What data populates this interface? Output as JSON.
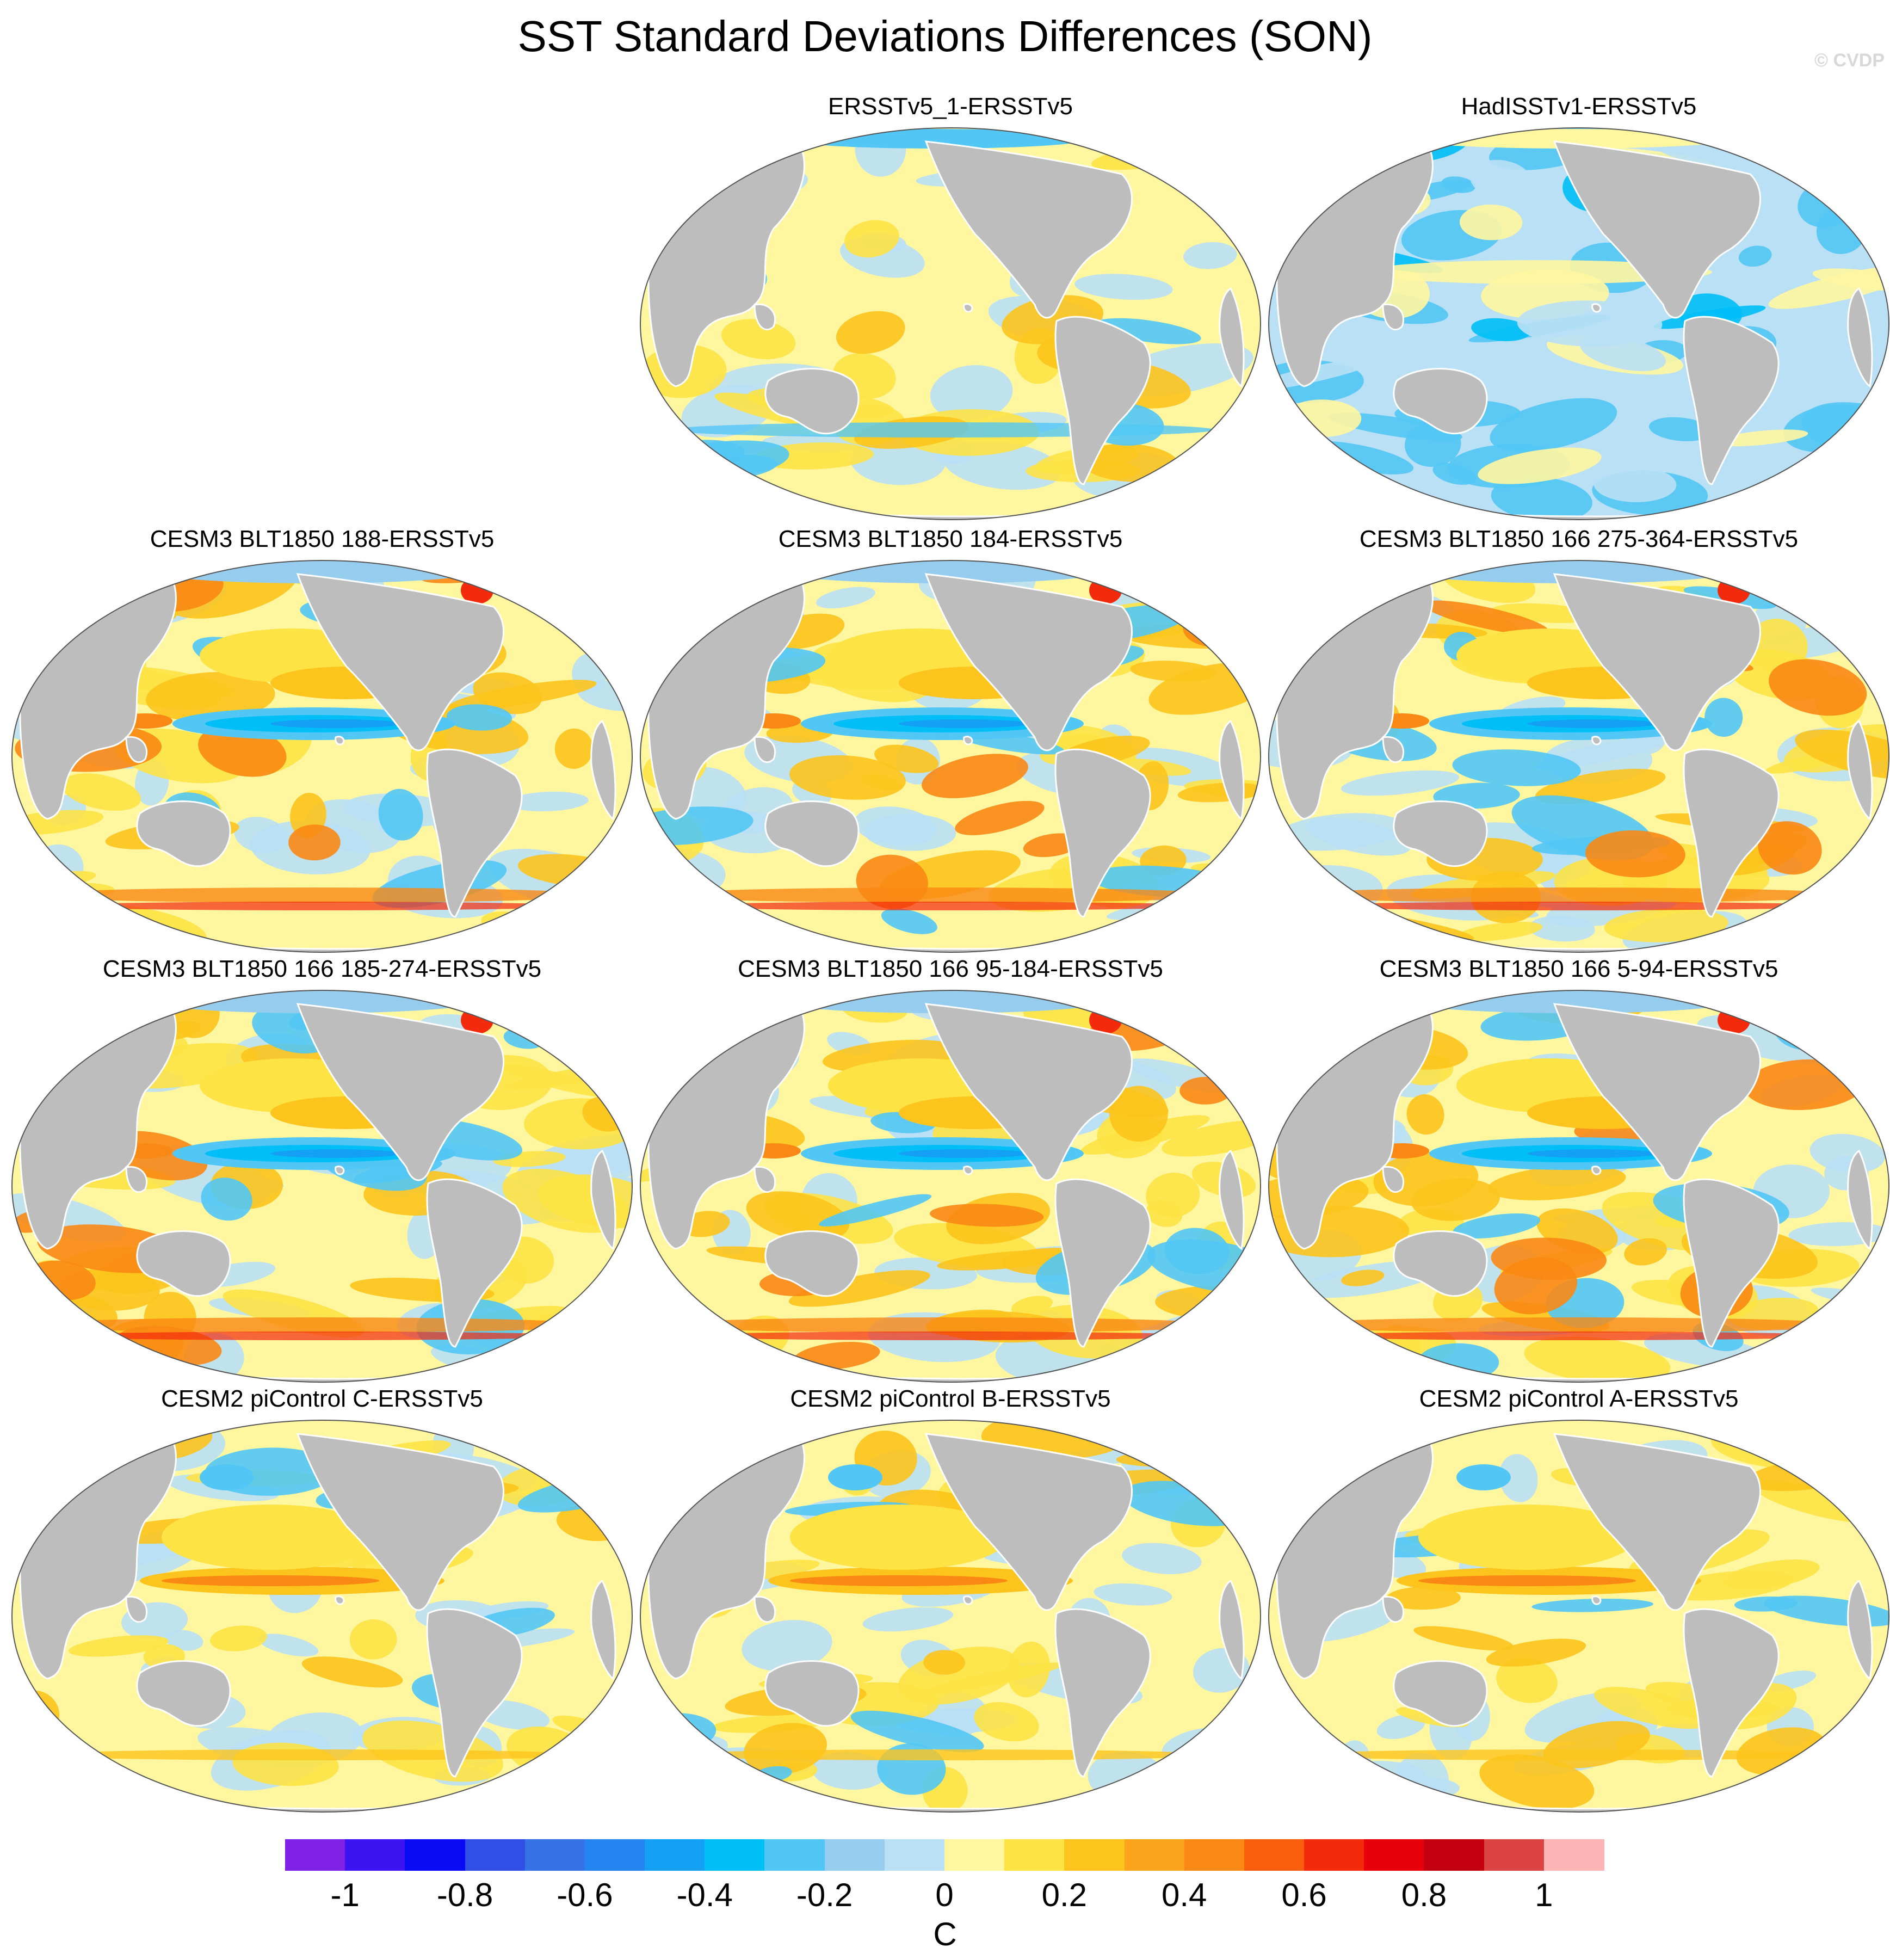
{
  "figure": {
    "title": "SST Standard Deviations Differences (SON)",
    "watermark": "© CVDP"
  },
  "panels": [
    {
      "id": "p1",
      "title": "ERSSTv5_1-ERSSTv5",
      "pattern": "obs-mixed"
    },
    {
      "id": "p2",
      "title": "HadISSTv1-ERSSTv5",
      "pattern": "obs-negative"
    },
    {
      "id": "p3",
      "title": "CESM3 BLT1850 188-ERSSTv5",
      "pattern": "cesm3"
    },
    {
      "id": "p4",
      "title": "CESM3 BLT1850 184-ERSSTv5",
      "pattern": "cesm3"
    },
    {
      "id": "p5",
      "title": "CESM3 BLT1850 166 275-364-ERSSTv5",
      "pattern": "cesm3"
    },
    {
      "id": "p6",
      "title": "CESM3 BLT1850 166 185-274-ERSSTv5",
      "pattern": "cesm3"
    },
    {
      "id": "p7",
      "title": "CESM3 BLT1850 166 95-184-ERSSTv5",
      "pattern": "cesm3"
    },
    {
      "id": "p8",
      "title": "CESM3 BLT1850 166 5-94-ERSSTv5",
      "pattern": "cesm3"
    },
    {
      "id": "p9",
      "title": "CESM2 piControl C-ERSSTv5",
      "pattern": "cesm2"
    },
    {
      "id": "p10",
      "title": "CESM2 piControl B-ERSSTv5",
      "pattern": "cesm2"
    },
    {
      "id": "p11",
      "title": "CESM2 piControl A-ERSSTv5",
      "pattern": "cesm2"
    }
  ],
  "colorbar": {
    "colors": [
      "#7f22e6",
      "#3c14f2",
      "#0a0af5",
      "#2f4fe6",
      "#3472e6",
      "#2484f2",
      "#14a0f5",
      "#00bff7",
      "#52c7f5",
      "#96cdee",
      "#b9e0f5",
      "#fff6a0",
      "#fde344",
      "#fcc41c",
      "#f9a41a",
      "#f98814",
      "#f85e0c",
      "#f42a0c",
      "#e8000a",
      "#c40010",
      "#dc4444",
      "#fcb4b4"
    ],
    "tick_labels": [
      "-1",
      "-0.8",
      "-0.6",
      "-0.4",
      "-0.2",
      "0",
      "0.2",
      "0.4",
      "0.6",
      "0.8",
      "1"
    ],
    "unit": "C"
  },
  "palette": {
    "land": "#bdbdbd",
    "coast": "#ffffff",
    "outline": "#555555"
  }
}
